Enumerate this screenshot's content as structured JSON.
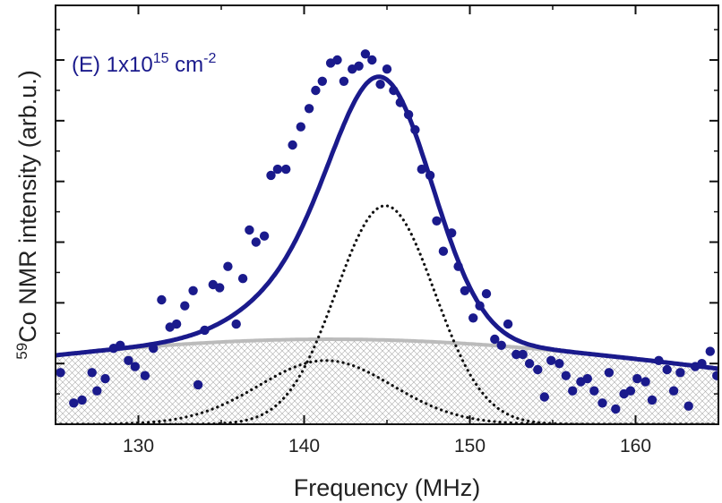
{
  "chart_data": {
    "type": "scatter",
    "title": "",
    "annotation": {
      "prefix": "(E) 1x10",
      "sup1": "15",
      "unit": " cm",
      "sup2": "-2",
      "color": "#1a1a8c"
    },
    "xlabel": "Frequency (MHz)",
    "ylabel": {
      "sup": "59",
      "text": "Co NMR intensity (arb.u.)"
    },
    "xlim": [
      125,
      165
    ],
    "ylim": [
      0,
      6.9
    ],
    "x_ticks": [
      130,
      140,
      150,
      160
    ],
    "x_tick_labels": [
      "130",
      "140",
      "150",
      "160"
    ],
    "y_ticks": [
      1,
      2,
      3,
      4,
      5,
      6
    ],
    "y_tick_labels_shown": false,
    "grid": false,
    "colors": {
      "points": "#1a1a8c",
      "fit": "#1a1a8c",
      "background_component": "#bbbbbb",
      "components": "#111111",
      "hatch": "#aaaaaa"
    },
    "series": [
      {
        "kind": "scatter",
        "x": [
          125.3,
          126.1,
          126.6,
          127.2,
          127.5,
          128.0,
          128.5,
          128.9,
          129.4,
          129.8,
          130.4,
          130.9,
          131.4,
          131.9,
          132.3,
          132.8,
          133.3,
          133.6,
          134.0,
          134.5,
          134.9,
          135.4,
          135.9,
          136.3,
          136.7,
          137.1,
          137.6,
          138.0,
          138.4,
          138.9,
          139.3,
          139.8,
          140.3,
          140.7,
          141.1,
          141.6,
          142.0,
          142.4,
          142.9,
          143.3,
          143.7,
          144.1,
          144.6,
          145.0,
          145.4,
          145.8,
          146.3,
          146.7,
          147.1,
          147.6,
          148.0,
          148.4,
          148.9,
          149.3,
          149.7,
          150.2,
          150.6,
          151.0,
          151.5,
          151.9,
          152.3,
          152.8,
          153.2,
          153.6,
          154.1,
          154.5,
          154.9,
          155.4,
          155.8,
          156.2,
          156.7,
          157.1,
          157.5,
          158.0,
          158.4,
          158.8,
          159.3,
          159.7,
          160.1,
          160.6,
          161.0,
          161.4,
          161.9,
          162.3,
          162.7,
          163.2,
          163.6,
          164.0,
          164.5,
          164.9
        ],
        "y": [
          0.85,
          0.35,
          0.4,
          0.85,
          0.55,
          0.75,
          1.25,
          1.3,
          1.05,
          0.95,
          0.8,
          1.25,
          2.05,
          1.6,
          1.65,
          1.95,
          2.2,
          0.65,
          1.55,
          2.3,
          2.25,
          2.6,
          1.65,
          2.4,
          3.2,
          3.0,
          3.1,
          4.1,
          4.2,
          4.2,
          4.6,
          4.9,
          5.2,
          5.5,
          5.65,
          5.95,
          6.0,
          5.65,
          5.85,
          5.9,
          6.1,
          6.0,
          5.6,
          5.85,
          5.5,
          5.3,
          5.1,
          4.85,
          4.2,
          4.1,
          3.35,
          2.85,
          3.15,
          2.6,
          2.2,
          1.75,
          1.95,
          2.15,
          1.4,
          1.3,
          1.65,
          1.15,
          1.15,
          1.0,
          0.9,
          0.45,
          1.05,
          1.0,
          0.8,
          0.55,
          0.7,
          0.75,
          0.55,
          0.35,
          0.85,
          0.25,
          0.5,
          0.55,
          0.75,
          0.7,
          0.4,
          1.05,
          0.9,
          0.55,
          0.85,
          0.3,
          0.95,
          1.0,
          1.2,
          0.8
        ]
      },
      {
        "kind": "fit-line",
        "components": [
          {
            "shape": "gaussian",
            "center": 144.9,
            "amplitude": 3.6,
            "fwhm": 7.0
          },
          {
            "shape": "gaussian",
            "center": 141.3,
            "amplitude": 1.05,
            "fwhm": 9.5
          },
          {
            "shape": "gaussian",
            "center": 141.5,
            "amplitude": 1.4,
            "fwhm": 60.0
          }
        ]
      },
      {
        "kind": "dotted-component",
        "shape": "gaussian",
        "center": 144.9,
        "amplitude": 3.6,
        "fwhm": 7.0
      },
      {
        "kind": "dotted-component",
        "shape": "gaussian",
        "center": 141.3,
        "amplitude": 1.05,
        "fwhm": 9.5
      },
      {
        "kind": "hatched-component",
        "shape": "gaussian",
        "center": 141.5,
        "amplitude": 1.4,
        "fwhm": 60.0
      }
    ]
  }
}
